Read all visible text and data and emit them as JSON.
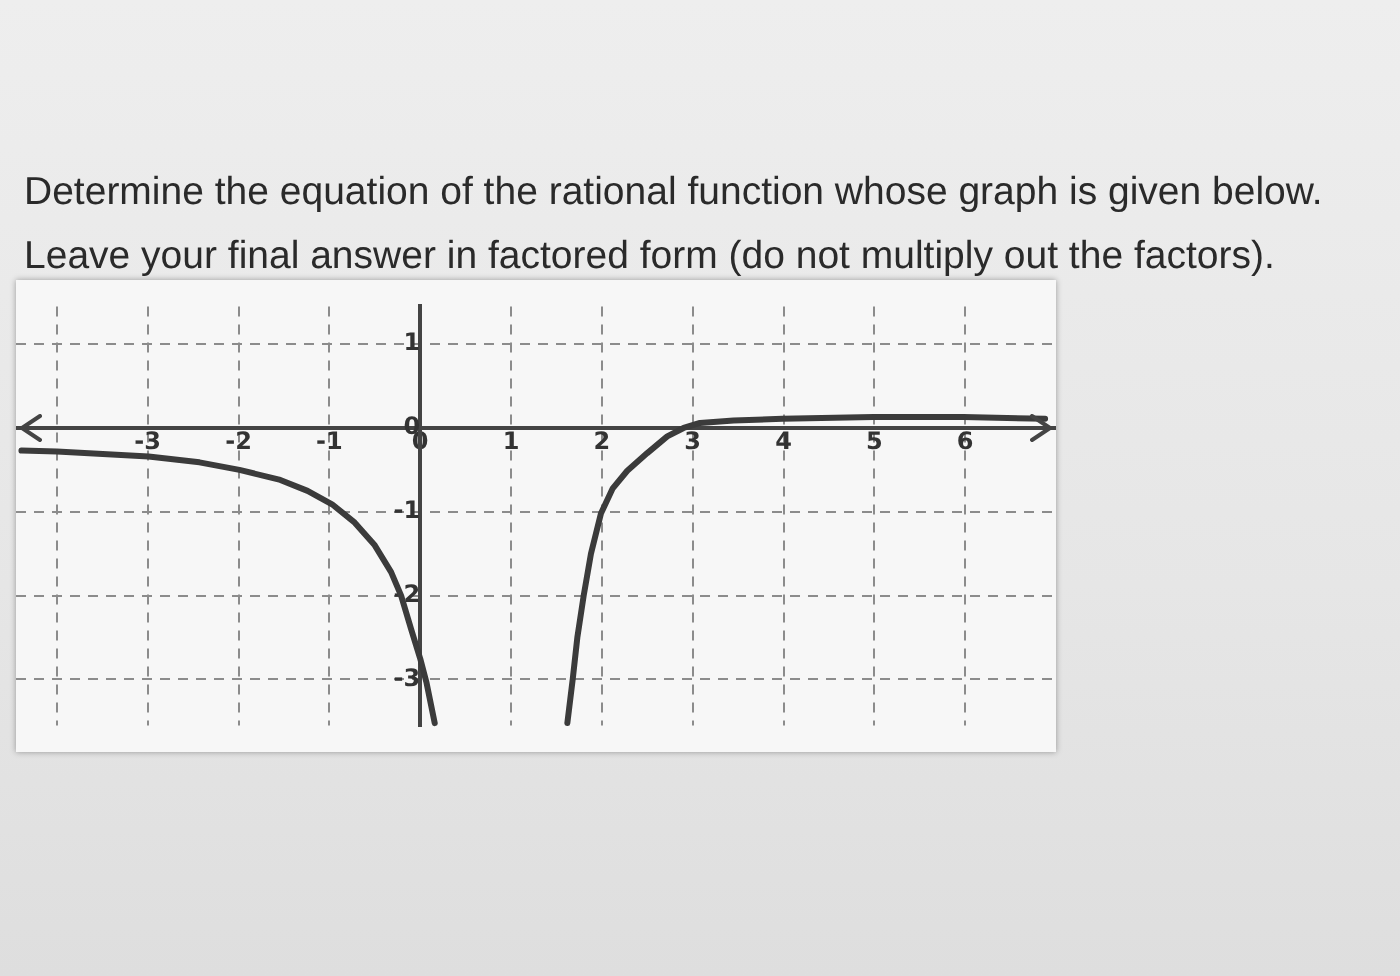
{
  "chart_data": {
    "type": "line",
    "title": "Determine the equation of the rational function whose graph is given below.\nLeave your final answer in factored form (do not multiply out the factors).",
    "series": [
      {
        "color": "#3b3b3b",
        "x": [
          -4.39,
          -4.0,
          -2.99,
          -2.43,
          -1.99,
          -1.54,
          -1.24,
          -0.97,
          -0.73,
          -0.5,
          -0.32,
          -0.21,
          -0.1,
          0.0,
          0.07,
          0.16
        ],
        "values": [
          -0.27,
          -0.28,
          -0.34,
          -0.41,
          -0.5,
          -0.62,
          -0.75,
          -0.91,
          -1.12,
          -1.4,
          -1.72,
          -2.0,
          -2.4,
          -2.75,
          -3.04,
          -3.52
        ]
      },
      {
        "color": "#3b3b3b",
        "x": [
          1.62,
          1.68,
          1.73,
          1.8,
          1.88,
          1.99,
          2.12,
          2.28,
          2.5,
          2.72,
          2.9,
          3.08,
          3.45,
          3.99,
          4.99,
          5.98,
          6.88
        ],
        "values": [
          -3.52,
          -2.99,
          -2.5,
          -2.0,
          -1.5,
          -1.02,
          -0.72,
          -0.51,
          -0.3,
          -0.1,
          0.0,
          0.06,
          0.09,
          0.11,
          0.13,
          0.13,
          0.11
        ]
      }
    ],
    "xlim": [
      -4.45,
      7.0
    ],
    "xticks": [
      {
        "value": -4,
        "label": null
      },
      -3,
      -2,
      -1,
      0,
      1,
      2,
      3,
      4,
      5,
      6
    ],
    "ylim": [
      -3.55,
      1.45
    ],
    "yticks": [
      1,
      0,
      -1,
      -2,
      -3
    ],
    "grid": true,
    "legend": false,
    "marker": "none",
    "line_style": "solid"
  }
}
